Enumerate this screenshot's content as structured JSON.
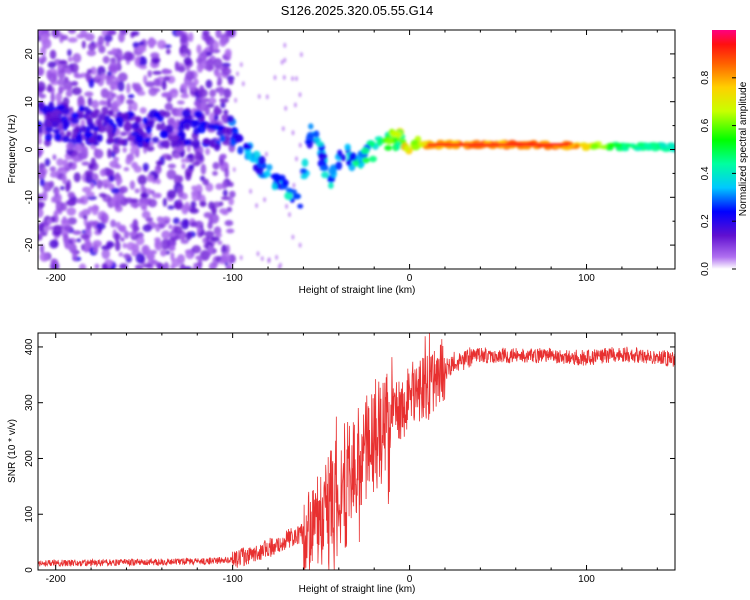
{
  "title": "S126.2025.320.05.55.G14",
  "chart_data": [
    {
      "type": "heatmap",
      "xlabel": "Height of straight line (km)",
      "ylabel": "Frequency (Hz)",
      "xlim": [
        -210,
        150
      ],
      "ylim": [
        -25,
        25
      ],
      "xticks": [
        -200,
        -100,
        0,
        100
      ],
      "yticks": [
        -20,
        -10,
        0,
        10,
        20
      ],
      "colorbar": {
        "label": "Normalized spectral amplitude",
        "range": [
          0,
          1
        ],
        "ticks": [
          "0.0",
          "0.2",
          "0.4",
          "0.6",
          "0.8"
        ],
        "tick_values": [
          0,
          0.2,
          0.4,
          0.6,
          0.8
        ]
      },
      "ridge": [
        {
          "x": -210,
          "y": 6,
          "amp": 0.2
        },
        {
          "x": -180,
          "y": 5,
          "amp": 0.2
        },
        {
          "x": -150,
          "y": 4,
          "amp": 0.2
        },
        {
          "x": -120,
          "y": 5,
          "amp": 0.2
        },
        {
          "x": -100,
          "y": 3,
          "amp": 0.25
        },
        {
          "x": -90,
          "y": -1,
          "amp": 0.3
        },
        {
          "x": -80,
          "y": -5,
          "amp": 0.35
        },
        {
          "x": -70,
          "y": -8,
          "amp": 0.35
        },
        {
          "x": -62,
          "y": -11,
          "amp": 0.35
        },
        {
          "x": -55,
          "y": 5,
          "amp": 0.3
        },
        {
          "x": -45,
          "y": -7,
          "amp": 0.35
        },
        {
          "x": -38,
          "y": 0,
          "amp": 0.3
        },
        {
          "x": -30,
          "y": -3,
          "amp": 0.4
        },
        {
          "x": -20,
          "y": 0,
          "amp": 0.45
        },
        {
          "x": -10,
          "y": 2,
          "amp": 0.6
        },
        {
          "x": 0,
          "y": 1.5,
          "amp": 0.7
        },
        {
          "x": 10,
          "y": 1,
          "amp": 0.85
        },
        {
          "x": 60,
          "y": 1,
          "amp": 0.9
        },
        {
          "x": 90,
          "y": 0.8,
          "amp": 0.9
        },
        {
          "x": 120,
          "y": 0.6,
          "amp": 0.5
        },
        {
          "x": 150,
          "y": 0.5,
          "amp": 0.45
        }
      ]
    },
    {
      "type": "line",
      "xlabel": "Height of straight line (km)",
      "ylabel": "SNR (10 * v/v)",
      "xlim": [
        -210,
        150
      ],
      "ylim": [
        0,
        425
      ],
      "xticks": [
        -200,
        -100,
        0,
        100
      ],
      "yticks": [
        0,
        100,
        200,
        300,
        400
      ],
      "color": "#e83030",
      "series": [
        {
          "name": "SNR",
          "x": [
            -210,
            -150,
            -120,
            -100,
            -90,
            -80,
            -70,
            -60,
            -50,
            -40,
            -35,
            -30,
            -25,
            -20,
            -15,
            -10,
            -5,
            0,
            5,
            10,
            15,
            20,
            25,
            30,
            35,
            40,
            50,
            60,
            80,
            100,
            120,
            150
          ],
          "y": [
            12,
            14,
            15,
            18,
            28,
            38,
            55,
            65,
            95,
            170,
            200,
            180,
            250,
            240,
            275,
            280,
            290,
            305,
            320,
            325,
            345,
            360,
            372,
            378,
            382,
            385,
            385,
            384,
            385,
            380,
            388,
            378
          ]
        }
      ]
    }
  ]
}
